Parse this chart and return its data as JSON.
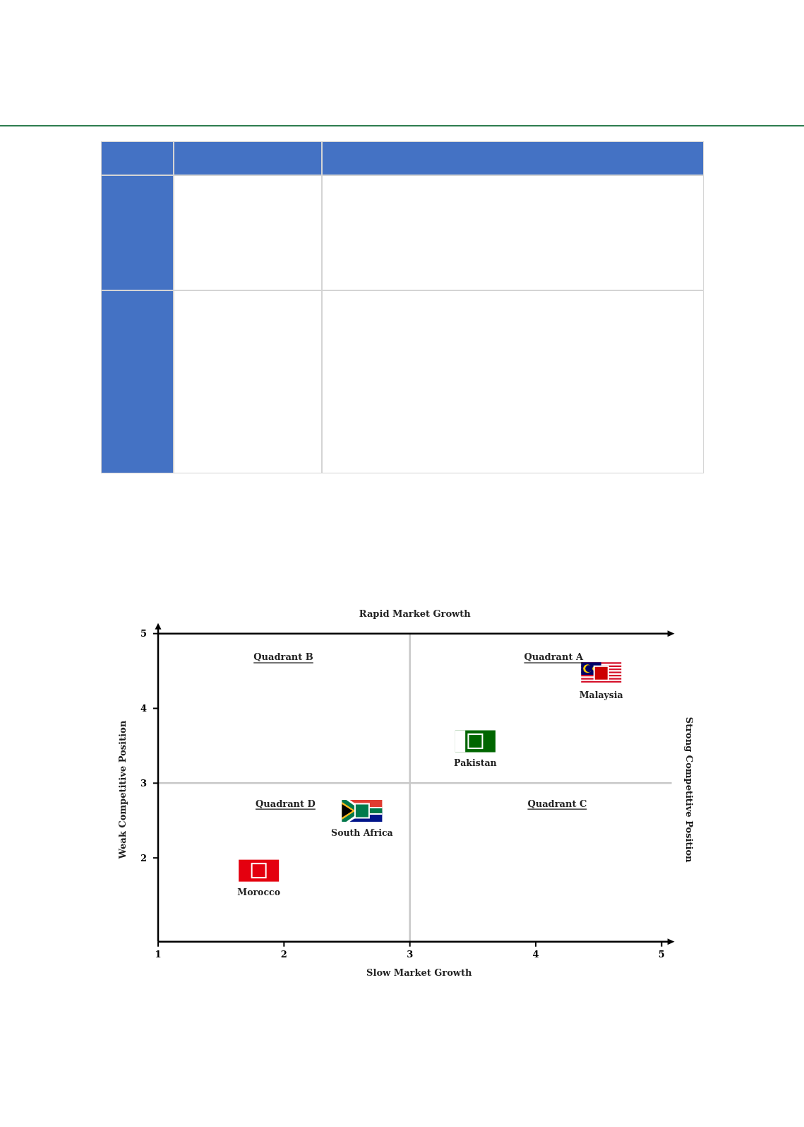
{
  "chart_data": {
    "type": "scatter",
    "xlabel": "Slow Market Growth",
    "x2label": "Rapid Market Growth",
    "ylabel": "Weak Competitive Position",
    "y2label": "Strong Competitive Position",
    "xlim": [
      1,
      5.08
    ],
    "xticks": [
      1,
      2,
      3,
      4,
      5
    ],
    "ylim": [
      0.88,
      5
    ],
    "yticks": [
      2,
      3,
      4,
      5
    ],
    "marker": "square",
    "series": [
      {
        "name": "Malaysia",
        "color": "#cc0001",
        "x": [
          4.52
        ],
        "values": [
          4.47
        ]
      },
      {
        "name": "Pakistan",
        "color": "#006600",
        "x": [
          3.52
        ],
        "values": [
          3.56
        ]
      },
      {
        "name": "South Africa",
        "color": "#007a4d",
        "x": [
          2.62
        ],
        "values": [
          2.63
        ]
      },
      {
        "name": "Morocco",
        "color": "#e4000f",
        "x": [
          1.8
        ],
        "values": [
          1.83
        ]
      }
    ],
    "ref_lines": [
      {
        "axis": "x",
        "value": 3,
        "color": "#c8c8c8"
      },
      {
        "axis": "y",
        "value": 3,
        "color": "#c8c8c8"
      },
      {
        "axis": "y",
        "value": 5,
        "color": "#000000"
      }
    ],
    "annotations": [
      "Quadrant B",
      "Quadrant A",
      "Quadrant D",
      "Quadrant C"
    ]
  }
}
